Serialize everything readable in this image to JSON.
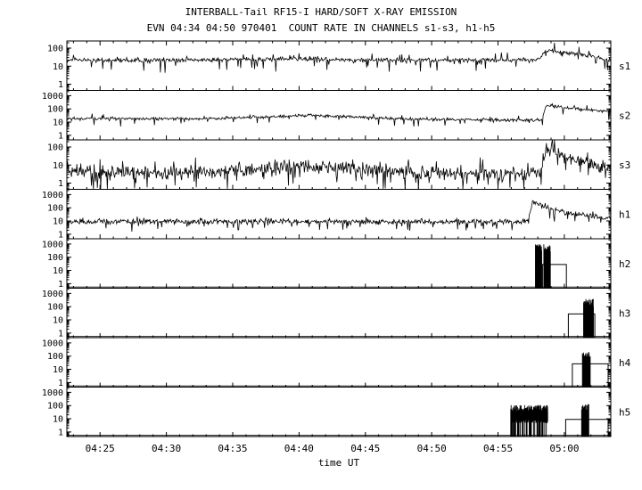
{
  "chart_data": {
    "type": "line",
    "title": "INTERBALL-Tail RF15-I HARD/SOFT X-RAY EMISSION",
    "subtitle": "EVN 04:34 04:50 970401  COUNT RATE IN CHANNELS s1-s3, h1-h5",
    "xlabel": "time UT",
    "y_scale": "log",
    "x_range_minutes": [
      262.5,
      303.5
    ],
    "x_minor_tick_minutes": 1,
    "x_major_ticks": [
      {
        "t": 265,
        "label": "04:25"
      },
      {
        "t": 270,
        "label": "04:30"
      },
      {
        "t": 275,
        "label": "04:35"
      },
      {
        "t": 280,
        "label": "04:40"
      },
      {
        "t": 285,
        "label": "04:45"
      },
      {
        "t": 290,
        "label": "04:50"
      },
      {
        "t": 295,
        "label": "04:55"
      },
      {
        "t": 300,
        "label": "05:00"
      }
    ],
    "colors": {
      "foreground": "#000000",
      "background": "#ffffff"
    },
    "legend_position": "right-of-each-panel",
    "grid": false,
    "panels": [
      {
        "label": "s1",
        "yticks": [
          1,
          10,
          100
        ],
        "ylim": [
          0.45,
          250
        ],
        "trace": {
          "sigma": 0.06,
          "dip_prob": 0.05,
          "dip_mag": 0.55,
          "up_prob": 0.02,
          "up_mag": 0.3,
          "envelope": [
            [
              262.5,
              22
            ],
            [
              272,
              21
            ],
            [
              277,
              24
            ],
            [
              281,
              27
            ],
            [
              284,
              22
            ],
            [
              290,
              21
            ],
            [
              295,
              22
            ],
            [
              297.9,
              22
            ],
            [
              298.2,
              26
            ],
            [
              298.55,
              78
            ],
            [
              299.3,
              62
            ],
            [
              300.8,
              48
            ],
            [
              302.4,
              34
            ],
            [
              303.1,
              24
            ],
            [
              303.5,
              20
            ]
          ]
        },
        "bursts": [],
        "boxes": []
      },
      {
        "label": "s2",
        "yticks": [
          1,
          10,
          100,
          1000
        ],
        "ylim": [
          0.45,
          2500
        ],
        "trace": {
          "sigma": 0.06,
          "dip_prob": 0.04,
          "dip_mag": 0.5,
          "up_prob": 0.02,
          "up_mag": 0.25,
          "envelope": [
            [
              262.5,
              18
            ],
            [
              272,
              18
            ],
            [
              277,
              23
            ],
            [
              280.5,
              33
            ],
            [
              283,
              27
            ],
            [
              287,
              18
            ],
            [
              292,
              16
            ],
            [
              296,
              14
            ],
            [
              298.3,
              14
            ],
            [
              298.65,
              185
            ],
            [
              299.8,
              135
            ],
            [
              301.5,
              92
            ],
            [
              303.5,
              58
            ]
          ]
        },
        "bursts": [],
        "boxes": []
      },
      {
        "label": "s3",
        "yticks": [
          1,
          10,
          100
        ],
        "ylim": [
          0.45,
          250
        ],
        "trace": {
          "sigma": 0.2,
          "dip_prob": 0.12,
          "dip_mag": 0.8,
          "up_prob": 0.06,
          "up_mag": 0.45,
          "envelope": [
            [
              262.5,
              4.2
            ],
            [
              270,
              4.2
            ],
            [
              275,
              5
            ],
            [
              279,
              7.5
            ],
            [
              281.5,
              8
            ],
            [
              284.5,
              6
            ],
            [
              289,
              4
            ],
            [
              294,
              3.6
            ],
            [
              298.25,
              3.6
            ],
            [
              298.6,
              95
            ],
            [
              299.4,
              48
            ],
            [
              300.5,
              24
            ],
            [
              301.8,
              13
            ],
            [
              303.5,
              7
            ]
          ]
        },
        "bursts": [],
        "boxes": []
      },
      {
        "label": "h1",
        "yticks": [
          1,
          10,
          100,
          1000
        ],
        "ylim": [
          0.45,
          2500
        ],
        "trace": {
          "sigma": 0.1,
          "dip_prob": 0.06,
          "dip_mag": 0.6,
          "up_prob": 0.02,
          "up_mag": 0.3,
          "envelope": [
            [
              262.5,
              9
            ],
            [
              275,
              9.5
            ],
            [
              285,
              9
            ],
            [
              293,
              9
            ],
            [
              297,
              9
            ],
            [
              297.3,
              11
            ],
            [
              297.6,
              300
            ],
            [
              298.2,
              165
            ],
            [
              299,
              80
            ],
            [
              300,
              46
            ],
            [
              301.3,
              28
            ],
            [
              303.5,
              15
            ]
          ]
        },
        "bursts": [],
        "boxes": []
      },
      {
        "label": "h2",
        "yticks": [
          1,
          10,
          100,
          1000
        ],
        "ylim": [
          0.45,
          2500
        ],
        "trace": {
          "sigma": 0,
          "envelope": [
            [
              262.5,
              0.55
            ],
            [
              303.5,
              0.55
            ]
          ]
        },
        "bursts": [
          {
            "t0": 297.8,
            "t1": 298.3,
            "lo": 0.5,
            "hi": 1000,
            "n": 26,
            "spread": 0.5,
            "drop": 1
          },
          {
            "t0": 298.45,
            "t1": 298.95,
            "lo": 0.5,
            "hi": 950,
            "n": 24,
            "spread": 0.55,
            "drop": 1
          }
        ],
        "boxes": [
          {
            "t0": 298.35,
            "t1": 300.15,
            "top": 28
          }
        ]
      },
      {
        "label": "h3",
        "yticks": [
          1,
          10,
          100,
          1000
        ],
        "ylim": [
          0.45,
          2500
        ],
        "trace": {
          "sigma": 0,
          "envelope": [
            [
              262.5,
              0.55
            ],
            [
              303.5,
              0.55
            ]
          ]
        },
        "bursts": [
          {
            "t0": 301.45,
            "t1": 302.2,
            "lo": 0.5,
            "hi": 380,
            "n": 42,
            "spread": 0.65,
            "drop": 1
          }
        ],
        "boxes": [
          {
            "t0": 300.3,
            "t1": 302.3,
            "top": 28
          }
        ]
      },
      {
        "label": "h4",
        "yticks": [
          1,
          10,
          100,
          1000
        ],
        "ylim": [
          0.45,
          2500
        ],
        "trace": {
          "sigma": 0,
          "envelope": [
            [
              262.5,
              0.55
            ],
            [
              303.5,
              0.55
            ]
          ]
        },
        "bursts": [
          {
            "t0": 301.35,
            "t1": 301.95,
            "lo": 0.5,
            "hi": 230,
            "n": 32,
            "spread": 0.6,
            "drop": 1
          }
        ],
        "boxes": [
          {
            "t0": 300.6,
            "t1": 303.3,
            "top": 26
          }
        ]
      },
      {
        "label": "h5",
        "yticks": [
          1,
          10,
          100,
          1000
        ],
        "ylim": [
          0.45,
          2500
        ],
        "trace": {
          "sigma": 0,
          "envelope": [
            [
              262.5,
              0.55
            ],
            [
              303.5,
              0.55
            ]
          ]
        },
        "bursts": [
          {
            "t0": 295.95,
            "t1": 298.75,
            "lo": 7,
            "hi": 110,
            "n": 180,
            "spread": 0.6,
            "drop": 0.22
          },
          {
            "t0": 301.3,
            "t1": 301.85,
            "lo": 0.5,
            "hi": 130,
            "n": 26,
            "spread": 0.55,
            "drop": 1
          }
        ],
        "boxes": [
          {
            "t0": 300.1,
            "t1": 303.3,
            "top": 9
          }
        ]
      }
    ]
  }
}
